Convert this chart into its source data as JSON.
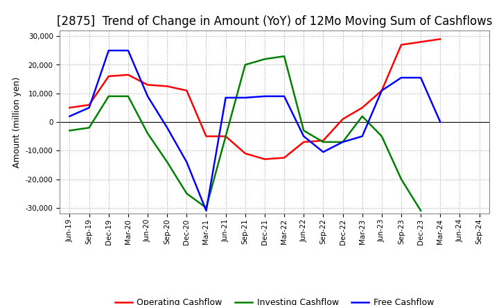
{
  "title": "[2875]  Trend of Change in Amount (YoY) of 12Mo Moving Sum of Cashflows",
  "ylabel": "Amount (million yen)",
  "x_labels": [
    "Jun-19",
    "Sep-19",
    "Dec-19",
    "Mar-20",
    "Jun-20",
    "Sep-20",
    "Dec-20",
    "Mar-21",
    "Jun-21",
    "Sep-21",
    "Dec-21",
    "Mar-22",
    "Jun-22",
    "Sep-22",
    "Dec-22",
    "Mar-23",
    "Jun-23",
    "Sep-23",
    "Dec-23",
    "Mar-24",
    "Jun-24",
    "Sep-24"
  ],
  "operating": [
    5000,
    6000,
    16000,
    16500,
    13000,
    12500,
    11000,
    -5000,
    -5000,
    -11000,
    -13000,
    -12500,
    -7000,
    -6500,
    1000,
    5000,
    11000,
    27000,
    28000,
    29000,
    null,
    null
  ],
  "investing": [
    -3000,
    -2000,
    9000,
    9000,
    -4000,
    -14000,
    -25000,
    -30000,
    -5000,
    20000,
    22000,
    23000,
    -3000,
    -7000,
    -7000,
    2000,
    -5000,
    -20000,
    -31000,
    null,
    null,
    null
  ],
  "free": [
    2000,
    5000,
    25000,
    25000,
    9000,
    -2000,
    -14000,
    -31000,
    8500,
    8500,
    9000,
    9000,
    -5000,
    -10500,
    -7000,
    -5000,
    11000,
    15500,
    15500,
    0,
    null,
    null
  ],
  "ylim": [
    -32000,
    32000
  ],
  "yticks": [
    -30000,
    -20000,
    -10000,
    0,
    10000,
    20000,
    30000
  ],
  "operating_color": "#ff0000",
  "investing_color": "#008000",
  "free_color": "#0000ff",
  "bg_color": "#ffffff",
  "plot_bg_color": "#ffffff",
  "grid_color": "#a0a0a0",
  "linewidth": 1.8,
  "title_fontsize": 12,
  "label_fontsize": 9,
  "tick_fontsize": 7.5,
  "legend_fontsize": 9
}
